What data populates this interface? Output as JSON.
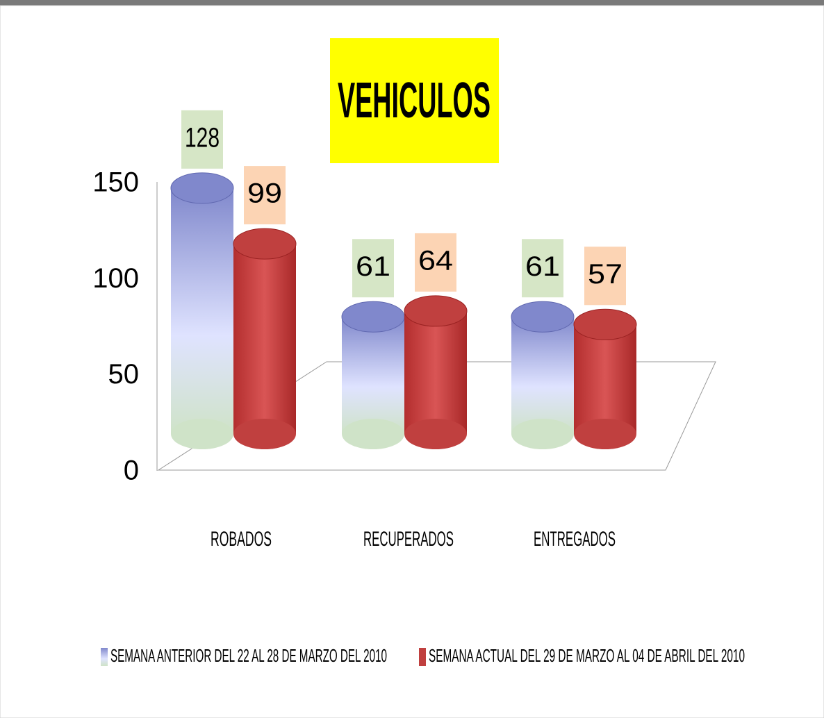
{
  "chart_data": {
    "type": "bar",
    "title": "VEHICULOS",
    "categories": [
      "ROBADOS",
      "RECUPERADOS",
      "ENTREGADOS"
    ],
    "series": [
      {
        "name": "SEMANA ANTERIOR DEL 22 AL 28 DE MARZO DEL 2010",
        "color": "#8088cc",
        "values": [
          128,
          61,
          61
        ]
      },
      {
        "name": "SEMANA ACTUAL DEL 29 DE MARZO AL 04 DE ABRIL DEL 2010",
        "color": "#c0403f",
        "values": [
          99,
          64,
          57
        ]
      }
    ],
    "ylim": [
      0,
      150
    ],
    "yticks": [
      0,
      50,
      100,
      150
    ],
    "legend": "bottom"
  }
}
